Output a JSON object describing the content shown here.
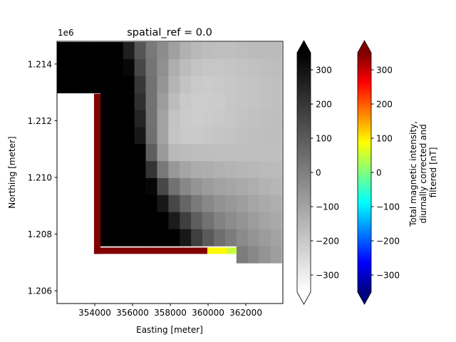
{
  "chart_data": {
    "type": "heatmap",
    "title": "spatial_ref = 0.0",
    "xlabel": "Easting [meter]",
    "ylabel": "Northing [meter]",
    "y_offset_label": "1e6",
    "xlim": [
      352000,
      363960
    ],
    "ylim": [
      1205550,
      1214800
    ],
    "x_ticks": [
      354000,
      356000,
      358000,
      360000,
      362000
    ],
    "x_tick_labels": [
      "354000",
      "356000",
      "358000",
      "360000",
      "362000"
    ],
    "y_ticks": [
      1206000,
      1208000,
      1210000,
      1212000,
      1214000
    ],
    "y_tick_labels": [
      "1.206",
      "1.208",
      "1.210",
      "1.212",
      "1.214"
    ],
    "grid": false,
    "raster": {
      "colormap": "gray_r",
      "vmin": -350,
      "vmax": 350,
      "x_start": 351900,
      "y_start": 1214775,
      "cell_size": 600,
      "rows": [
        [
          400,
          400,
          400,
          400,
          400,
          400,
          266,
          118,
          21,
          -35,
          -90,
          -135,
          -157,
          -168,
          -174,
          -174,
          -168,
          -163,
          -163,
          -163
        ],
        [
          400,
          400,
          400,
          400,
          400,
          400,
          327,
          155,
          29,
          -46,
          -127,
          -166,
          -185,
          -193,
          -193,
          -191,
          -185,
          -180,
          -174,
          -168
        ],
        [
          400,
          400,
          400,
          400,
          400,
          400,
          400,
          199,
          38,
          -60,
          -143,
          -185,
          -202,
          -207,
          -202,
          -196,
          -191,
          -185,
          -180,
          -174
        ],
        [
          null,
          null,
          null,
          null,
          400,
          400,
          400,
          221,
          38,
          -79,
          -166,
          -202,
          -210,
          -210,
          -207,
          -196,
          -191,
          -185,
          -180,
          -174
        ],
        [
          null,
          null,
          null,
          null,
          400,
          400,
          400,
          252,
          38,
          -96,
          -185,
          -207,
          -213,
          -207,
          -202,
          -193,
          -185,
          -180,
          -174,
          -171
        ],
        [
          null,
          null,
          null,
          null,
          400,
          400,
          400,
          288,
          43,
          -96,
          -191,
          -202,
          -202,
          -196,
          -191,
          -185,
          -180,
          -174,
          -171,
          -171
        ],
        [
          null,
          null,
          null,
          null,
          400,
          400,
          400,
          400,
          93,
          -74,
          -157,
          -166,
          -168,
          -171,
          -174,
          -174,
          -174,
          -174,
          -174,
          -174
        ],
        [
          null,
          null,
          null,
          null,
          400,
          400,
          400,
          400,
          207,
          21,
          -68,
          -104,
          -121,
          -129,
          -135,
          -143,
          -149,
          -154,
          -160,
          -163
        ],
        [
          null,
          null,
          null,
          null,
          400,
          400,
          400,
          400,
          333,
          155,
          38,
          -24,
          -57,
          -79,
          -96,
          -107,
          -118,
          -129,
          -141,
          -149
        ],
        [
          null,
          null,
          null,
          null,
          400,
          400,
          400,
          400,
          400,
          288,
          155,
          74,
          15,
          -24,
          -51,
          -68,
          -85,
          -102,
          -118,
          -129
        ],
        [
          null,
          null,
          null,
          null,
          400,
          400,
          400,
          400,
          400,
          400,
          277,
          177,
          93,
          38,
          -7,
          -35,
          -57,
          -79,
          -99,
          -113
        ],
        [
          null,
          null,
          null,
          null,
          400,
          400,
          400,
          400,
          400,
          400,
          400,
          283,
          177,
          104,
          49,
          10,
          -29,
          -57,
          -79,
          -96
        ],
        [
          null,
          null,
          null,
          null,
          null,
          null,
          null,
          null,
          null,
          null,
          null,
          null,
          null,
          null,
          null,
          null,
          10,
          -24,
          -57,
          -85
        ]
      ]
    },
    "overlay": {
      "colormap": "jet",
      "vmin": -350,
      "vmax": 350,
      "segments": [
        {
          "x": [
            353960,
            354300
          ],
          "y": [
            1207300,
            1212950
          ],
          "value": 400
        },
        {
          "x": [
            353960,
            359960
          ],
          "y": [
            1207300,
            1207525
          ],
          "value": 400
        },
        {
          "x": [
            359960,
            360980
          ],
          "y": [
            1207300,
            1207525
          ],
          "value": 90
        },
        {
          "x": [
            360980,
            361510
          ],
          "y": [
            1207300,
            1207525
          ],
          "value": 50
        }
      ]
    },
    "colorbars": [
      {
        "colormap": "gray_r",
        "range": [
          -350,
          350
        ],
        "extend": "both",
        "ticks": [
          -300,
          -200,
          -100,
          0,
          100,
          200,
          300
        ],
        "tick_labels": [
          "−300",
          "−200",
          "−100",
          "0",
          "100",
          "200",
          "300"
        ],
        "label": ""
      },
      {
        "colormap": "jet",
        "range": [
          -350,
          350
        ],
        "extend": "both",
        "ticks": [
          -300,
          -200,
          -100,
          0,
          100,
          200,
          300
        ],
        "tick_labels": [
          "−300",
          "−200",
          "−100",
          "0",
          "100",
          "200",
          "300"
        ],
        "label_lines": [
          "Total magnetic intensity,",
          "diurnally corrected and",
          "filtered [nT]"
        ]
      }
    ]
  }
}
